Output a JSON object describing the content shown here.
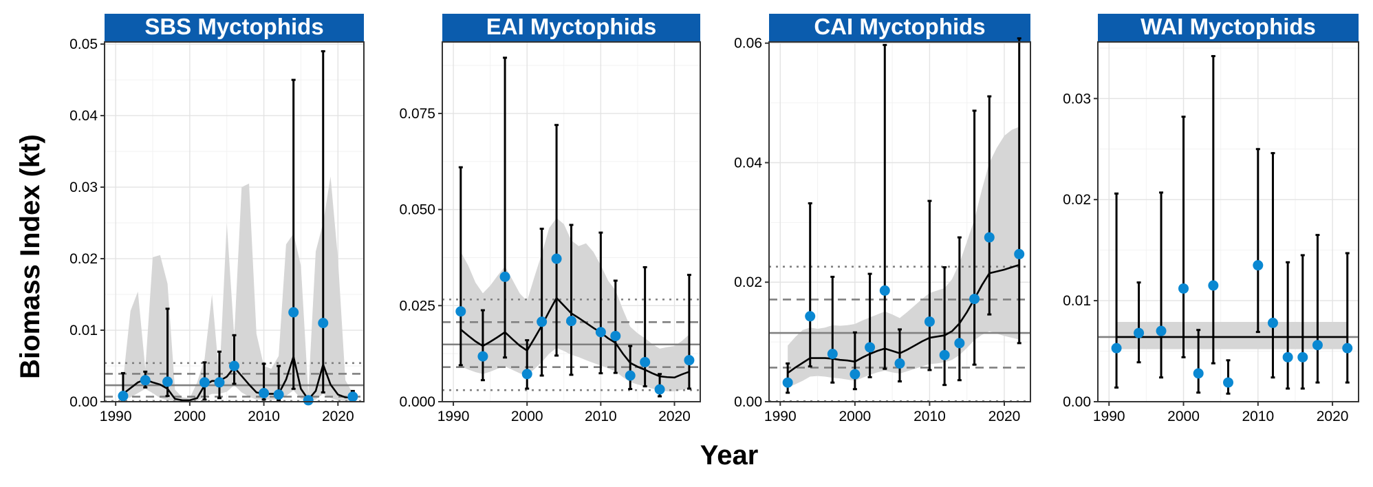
{
  "figure": {
    "ylabel": "Biomass Index (kt)",
    "xlabel": "Year",
    "point_color": "#0a88d2",
    "strip_color": "#0b5cad",
    "ribbon_color": "#d6d6d6",
    "mean_line_color": "#808080"
  },
  "chart_data": [
    {
      "type": "scatter",
      "title": "SBS Myctophids",
      "xlim": [
        1988.5,
        2023.5
      ],
      "ylim": [
        0,
        0.0503
      ],
      "x_ticks": [
        1990,
        2000,
        2010,
        2020
      ],
      "x_tick_labels": [
        "1990",
        "2000",
        "2010",
        "2020"
      ],
      "y_ticks": [
        0,
        0.01,
        0.02,
        0.03,
        0.04,
        0.05
      ],
      "y_tick_labels": [
        "0.00",
        "0.01",
        "0.02",
        "0.03",
        "0.04",
        "0.05"
      ],
      "grid": true,
      "observations": {
        "x": [
          1991,
          1994,
          1997,
          2002,
          2004,
          2006,
          2010,
          2012,
          2014,
          2016,
          2018,
          2022
        ],
        "y": [
          0.0008,
          0.003,
          0.0028,
          0.0027,
          0.0027,
          0.005,
          0.0012,
          0.001,
          0.0125,
          0.0002,
          0.011,
          0.0007
        ],
        "lower": [
          0.0002,
          0.002,
          0.0008,
          0.0003,
          0.0005,
          0.0025,
          0.0003,
          0.0002,
          0.0018,
          0.0001,
          0.0013,
          0.0001
        ],
        "upper": [
          0.004,
          0.0042,
          0.013,
          0.0055,
          0.007,
          0.0093,
          0.0053,
          0.005,
          0.045,
          0.0005,
          0.049,
          0.0015
        ]
      },
      "model_fit": {
        "x": [
          1991,
          1992,
          1993,
          1994,
          1995,
          1996,
          1997,
          1998,
          1999,
          2000,
          2001,
          2002,
          2003,
          2004,
          2005,
          2006,
          2007,
          2008,
          2009,
          2010,
          2011,
          2012,
          2013,
          2014,
          2015,
          2016,
          2017,
          2018,
          2019,
          2020,
          2021,
          2022
        ],
        "y": [
          0.0011,
          0.0019,
          0.0027,
          0.0031,
          0.0027,
          0.0024,
          0.0018,
          0.0004,
          0.0002,
          0.0002,
          0.0005,
          0.0023,
          0.0029,
          0.0029,
          0.0035,
          0.0048,
          0.0036,
          0.0024,
          0.0013,
          0.0011,
          0.0011,
          0.0011,
          0.0031,
          0.0063,
          0.0018,
          0.0003,
          0.0015,
          0.0052,
          0.0024,
          0.001,
          0.0006,
          0.0006
        ],
        "lower": [
          0.0003,
          0.0006,
          0.0012,
          0.0018,
          0.0012,
          0.0005,
          0.0002,
          0.0001,
          0.0001,
          0.0001,
          0.0001,
          0.0007,
          0.0011,
          0.0011,
          0.0014,
          0.0023,
          0.0013,
          0.0007,
          0.0003,
          0.0003,
          0.0003,
          0.0003,
          0.0008,
          0.0016,
          0.0004,
          0.0001,
          0.0003,
          0.0011,
          0.0005,
          0.0002,
          0.0001,
          0.0001
        ],
        "upper": [
          0.003,
          0.0127,
          0.0154,
          0.0046,
          0.0202,
          0.0205,
          0.0165,
          0.0017,
          0.0006,
          0.0005,
          0.0027,
          0.006,
          0.015,
          0.0033,
          0.025,
          0.0091,
          0.03,
          0.0305,
          0.0095,
          0.005,
          0.0046,
          0.0064,
          0.022,
          0.0235,
          0.019,
          0.0012,
          0.021,
          0.025,
          0.0315,
          0.02,
          0.003,
          0.0012
        ]
      },
      "reference_lines": {
        "mean": 0.0023,
        "sd_dashed": [
          0.0007,
          0.0039
        ],
        "sd_dotted": [
          0.0001,
          0.0054
        ]
      }
    },
    {
      "type": "scatter",
      "title": "EAI Myctophids",
      "xlim": [
        1988.5,
        2023.5
      ],
      "ylim": [
        0,
        0.0936
      ],
      "x_ticks": [
        1990,
        2000,
        2010,
        2020
      ],
      "x_tick_labels": [
        "1990",
        "2000",
        "2010",
        "2020"
      ],
      "y_ticks": [
        0,
        0.025,
        0.05,
        0.075
      ],
      "y_tick_labels": [
        "0.000",
        "0.025",
        "0.050",
        "0.075"
      ],
      "grid": true,
      "observations": {
        "x": [
          1991,
          1994,
          1997,
          2000,
          2002,
          2004,
          2006,
          2010,
          2012,
          2014,
          2016,
          2018,
          2022
        ],
        "y": [
          0.0235,
          0.0118,
          0.0325,
          0.0072,
          0.0208,
          0.0372,
          0.021,
          0.0181,
          0.0171,
          0.0068,
          0.0103,
          0.0032,
          0.0108
        ],
        "lower": [
          0.0095,
          0.0056,
          0.0115,
          0.0034,
          0.0068,
          0.012,
          0.007,
          0.0074,
          0.0075,
          0.0033,
          0.004,
          0.0014,
          0.0034
        ],
        "upper": [
          0.061,
          0.0238,
          0.0895,
          0.016,
          0.045,
          0.072,
          0.046,
          0.044,
          0.0315,
          0.0145,
          0.035,
          0.0072,
          0.033
        ]
      },
      "model_fit": {
        "x": [
          1991,
          1992,
          1993,
          1994,
          1995,
          1996,
          1997,
          1998,
          1999,
          2000,
          2001,
          2002,
          2003,
          2004,
          2005,
          2006,
          2007,
          2008,
          2009,
          2010,
          2011,
          2012,
          2013,
          2014,
          2015,
          2016,
          2017,
          2018,
          2019,
          2020,
          2021,
          2022
        ],
        "y": [
          0.0188,
          0.0172,
          0.0157,
          0.0145,
          0.0156,
          0.0168,
          0.0181,
          0.0163,
          0.0146,
          0.0133,
          0.0165,
          0.0198,
          0.0235,
          0.027,
          0.025,
          0.023,
          0.0218,
          0.0205,
          0.0192,
          0.018,
          0.0165,
          0.0153,
          0.0125,
          0.0101,
          0.0091,
          0.0083,
          0.0074,
          0.0066,
          0.0064,
          0.0063,
          0.0071,
          0.0078
        ],
        "lower": [
          0.0092,
          0.0084,
          0.0077,
          0.0072,
          0.0078,
          0.0086,
          0.0092,
          0.0083,
          0.0074,
          0.0068,
          0.0085,
          0.0103,
          0.0125,
          0.014,
          0.0132,
          0.0122,
          0.0116,
          0.0108,
          0.0101,
          0.0094,
          0.0087,
          0.0079,
          0.0064,
          0.0051,
          0.0045,
          0.004,
          0.0034,
          0.0029,
          0.0027,
          0.0027,
          0.0031,
          0.0034
        ],
        "upper": [
          0.039,
          0.0355,
          0.031,
          0.0282,
          0.0302,
          0.0328,
          0.0352,
          0.0318,
          0.0282,
          0.0262,
          0.0325,
          0.0385,
          0.0452,
          0.0478,
          0.0462,
          0.042,
          0.0405,
          0.0412,
          0.039,
          0.0355,
          0.0315,
          0.029,
          0.024,
          0.0195,
          0.0178,
          0.0165,
          0.015,
          0.0138,
          0.0142,
          0.0145,
          0.0158,
          0.0175
        ]
      },
      "reference_lines": {
        "mean": 0.0149,
        "sd_dashed": [
          0.009,
          0.0207
        ],
        "sd_dotted": [
          0.003,
          0.0266
        ]
      }
    },
    {
      "type": "scatter",
      "title": "CAI Myctophids",
      "xlim": [
        1988.5,
        2023.5
      ],
      "ylim": [
        0,
        0.0602
      ],
      "x_ticks": [
        1990,
        2000,
        2010,
        2020
      ],
      "x_tick_labels": [
        "1990",
        "2000",
        "2010",
        "2020"
      ],
      "y_ticks": [
        0,
        0.02,
        0.04,
        0.06
      ],
      "y_tick_labels": [
        "0.00",
        "0.02",
        "0.04",
        "0.06"
      ],
      "grid": true,
      "observations": {
        "x": [
          1991,
          1994,
          1997,
          2000,
          2002,
          2004,
          2006,
          2010,
          2012,
          2014,
          2016,
          2018,
          2022
        ],
        "y": [
          0.0032,
          0.0143,
          0.008,
          0.0046,
          0.0091,
          0.0186,
          0.0064,
          0.0134,
          0.0078,
          0.0098,
          0.0172,
          0.0275,
          0.0247
        ],
        "lower": [
          0.0015,
          0.0059,
          0.0032,
          0.0021,
          0.0041,
          0.0055,
          0.0034,
          0.0053,
          0.0028,
          0.0036,
          0.0062,
          0.0146,
          0.0098
        ],
        "upper": [
          0.0064,
          0.0332,
          0.0209,
          0.0116,
          0.0214,
          0.0597,
          0.0121,
          0.0336,
          0.0225,
          0.0275,
          0.0487,
          0.0511,
          0.0608
        ]
      },
      "model_fit": {
        "x": [
          1991,
          1992,
          1993,
          1994,
          1995,
          1996,
          1997,
          1998,
          1999,
          2000,
          2001,
          2002,
          2003,
          2004,
          2005,
          2006,
          2007,
          2008,
          2009,
          2010,
          2011,
          2012,
          2013,
          2014,
          2015,
          2016,
          2017,
          2018,
          2019,
          2020,
          2021,
          2022
        ],
        "y": [
          0.0048,
          0.0057,
          0.0065,
          0.0073,
          0.0073,
          0.0073,
          0.0072,
          0.007,
          0.0069,
          0.0067,
          0.0074,
          0.008,
          0.0085,
          0.0089,
          0.0085,
          0.0081,
          0.0087,
          0.0094,
          0.0101,
          0.0107,
          0.0109,
          0.0111,
          0.0118,
          0.0131,
          0.015,
          0.0172,
          0.0195,
          0.0215,
          0.0218,
          0.0221,
          0.0225,
          0.0229
        ],
        "lower": [
          0.0024,
          0.0029,
          0.0035,
          0.0042,
          0.0043,
          0.0042,
          0.004,
          0.0039,
          0.0037,
          0.0035,
          0.004,
          0.0045,
          0.0049,
          0.0052,
          0.0049,
          0.0047,
          0.0051,
          0.0055,
          0.0059,
          0.0063,
          0.0064,
          0.0066,
          0.007,
          0.0078,
          0.009,
          0.0103,
          0.0112,
          0.0118,
          0.0114,
          0.011,
          0.0107,
          0.0104
        ],
        "upper": [
          0.0094,
          0.0108,
          0.012,
          0.0124,
          0.0122,
          0.0124,
          0.0128,
          0.0127,
          0.0128,
          0.013,
          0.0136,
          0.0141,
          0.0146,
          0.0151,
          0.0146,
          0.014,
          0.015,
          0.0161,
          0.0172,
          0.0182,
          0.0186,
          0.019,
          0.0205,
          0.0232,
          0.0268,
          0.0305,
          0.0355,
          0.04,
          0.0425,
          0.0445,
          0.0455,
          0.046
        ]
      },
      "reference_lines": {
        "mean": 0.0115,
        "sd_dashed": [
          0.0057,
          0.0171
        ],
        "sd_dotted": [
          0.0001,
          0.0226
        ]
      }
    },
    {
      "type": "scatter",
      "title": "WAI Myctophids",
      "xlim": [
        1988.5,
        2023.5
      ],
      "ylim": [
        0,
        0.0356
      ],
      "x_ticks": [
        1990,
        2000,
        2010,
        2020
      ],
      "x_tick_labels": [
        "1990",
        "2000",
        "2010",
        "2020"
      ],
      "y_ticks": [
        0,
        0.01,
        0.02,
        0.03
      ],
      "y_tick_labels": [
        "0.00",
        "0.01",
        "0.02",
        "0.03"
      ],
      "grid": true,
      "observations": {
        "x": [
          1991,
          1994,
          1997,
          2000,
          2002,
          2004,
          2006,
          2010,
          2012,
          2014,
          2016,
          2018,
          2022
        ],
        "y": [
          0.0053,
          0.0068,
          0.007,
          0.0112,
          0.0028,
          0.0115,
          0.0019,
          0.0135,
          0.0078,
          0.0044,
          0.0044,
          0.0056,
          0.0053
        ],
        "lower": [
          0.0014,
          0.0039,
          0.0024,
          0.0044,
          0.0009,
          0.0038,
          0.0008,
          0.0069,
          0.0024,
          0.0013,
          0.0013,
          0.0019,
          0.0019
        ],
        "upper": [
          0.0206,
          0.0118,
          0.0207,
          0.0282,
          0.0071,
          0.0342,
          0.0041,
          0.025,
          0.0246,
          0.0138,
          0.0145,
          0.0165,
          0.0147
        ]
      },
      "model_fit": {
        "x": [
          1991,
          2022
        ],
        "y": [
          0.0064,
          0.0064
        ],
        "lower": [
          0.0052,
          0.0052
        ],
        "upper": [
          0.0079,
          0.0079
        ]
      },
      "reference_lines": {
        "mean": 0.0064
      }
    }
  ]
}
